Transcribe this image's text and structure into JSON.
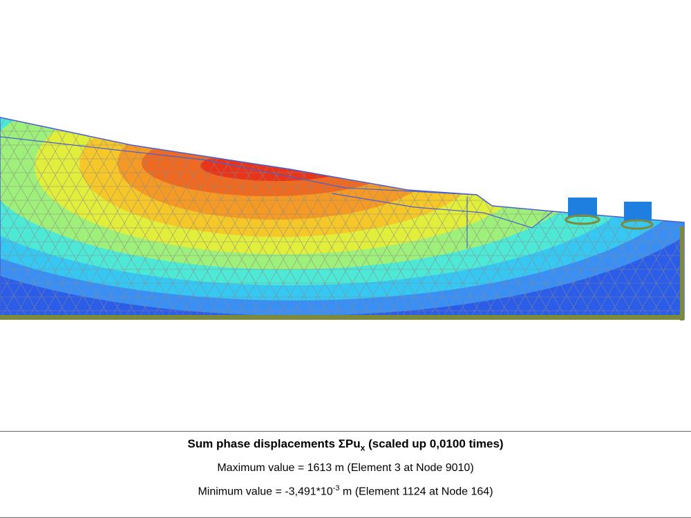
{
  "plot": {
    "title": "Sum phase displacements ΣPu",
    "title_subscript": "x",
    "title_suffix": " (scaled up 0,0100 times)",
    "max_prefix": "Maximum value = ",
    "max_value": "1613",
    "max_suffix": " m (Element 3 at Node 9010)",
    "min_prefix": "Minimum value = -3,491*10",
    "min_exponent": "-3",
    "min_suffix": " m (Element 1124 at Node 164)"
  },
  "colors": {
    "band_1": "#2b5de8",
    "band_2": "#3a8ff5",
    "band_3": "#36c8f2",
    "band_4": "#4ee8d6",
    "band_5": "#9ef07a",
    "band_6": "#e2ee3c",
    "band_7": "#f6c728",
    "band_8": "#f49a25",
    "band_9": "#ef6a20",
    "band_10": "#e8341a",
    "mesh": "#8a8a8a",
    "boundary": "#4a5fd0",
    "plate": "#7c8a3c",
    "footing": "#1f7fe0"
  },
  "footings": [
    "left-footing",
    "right-footing"
  ]
}
